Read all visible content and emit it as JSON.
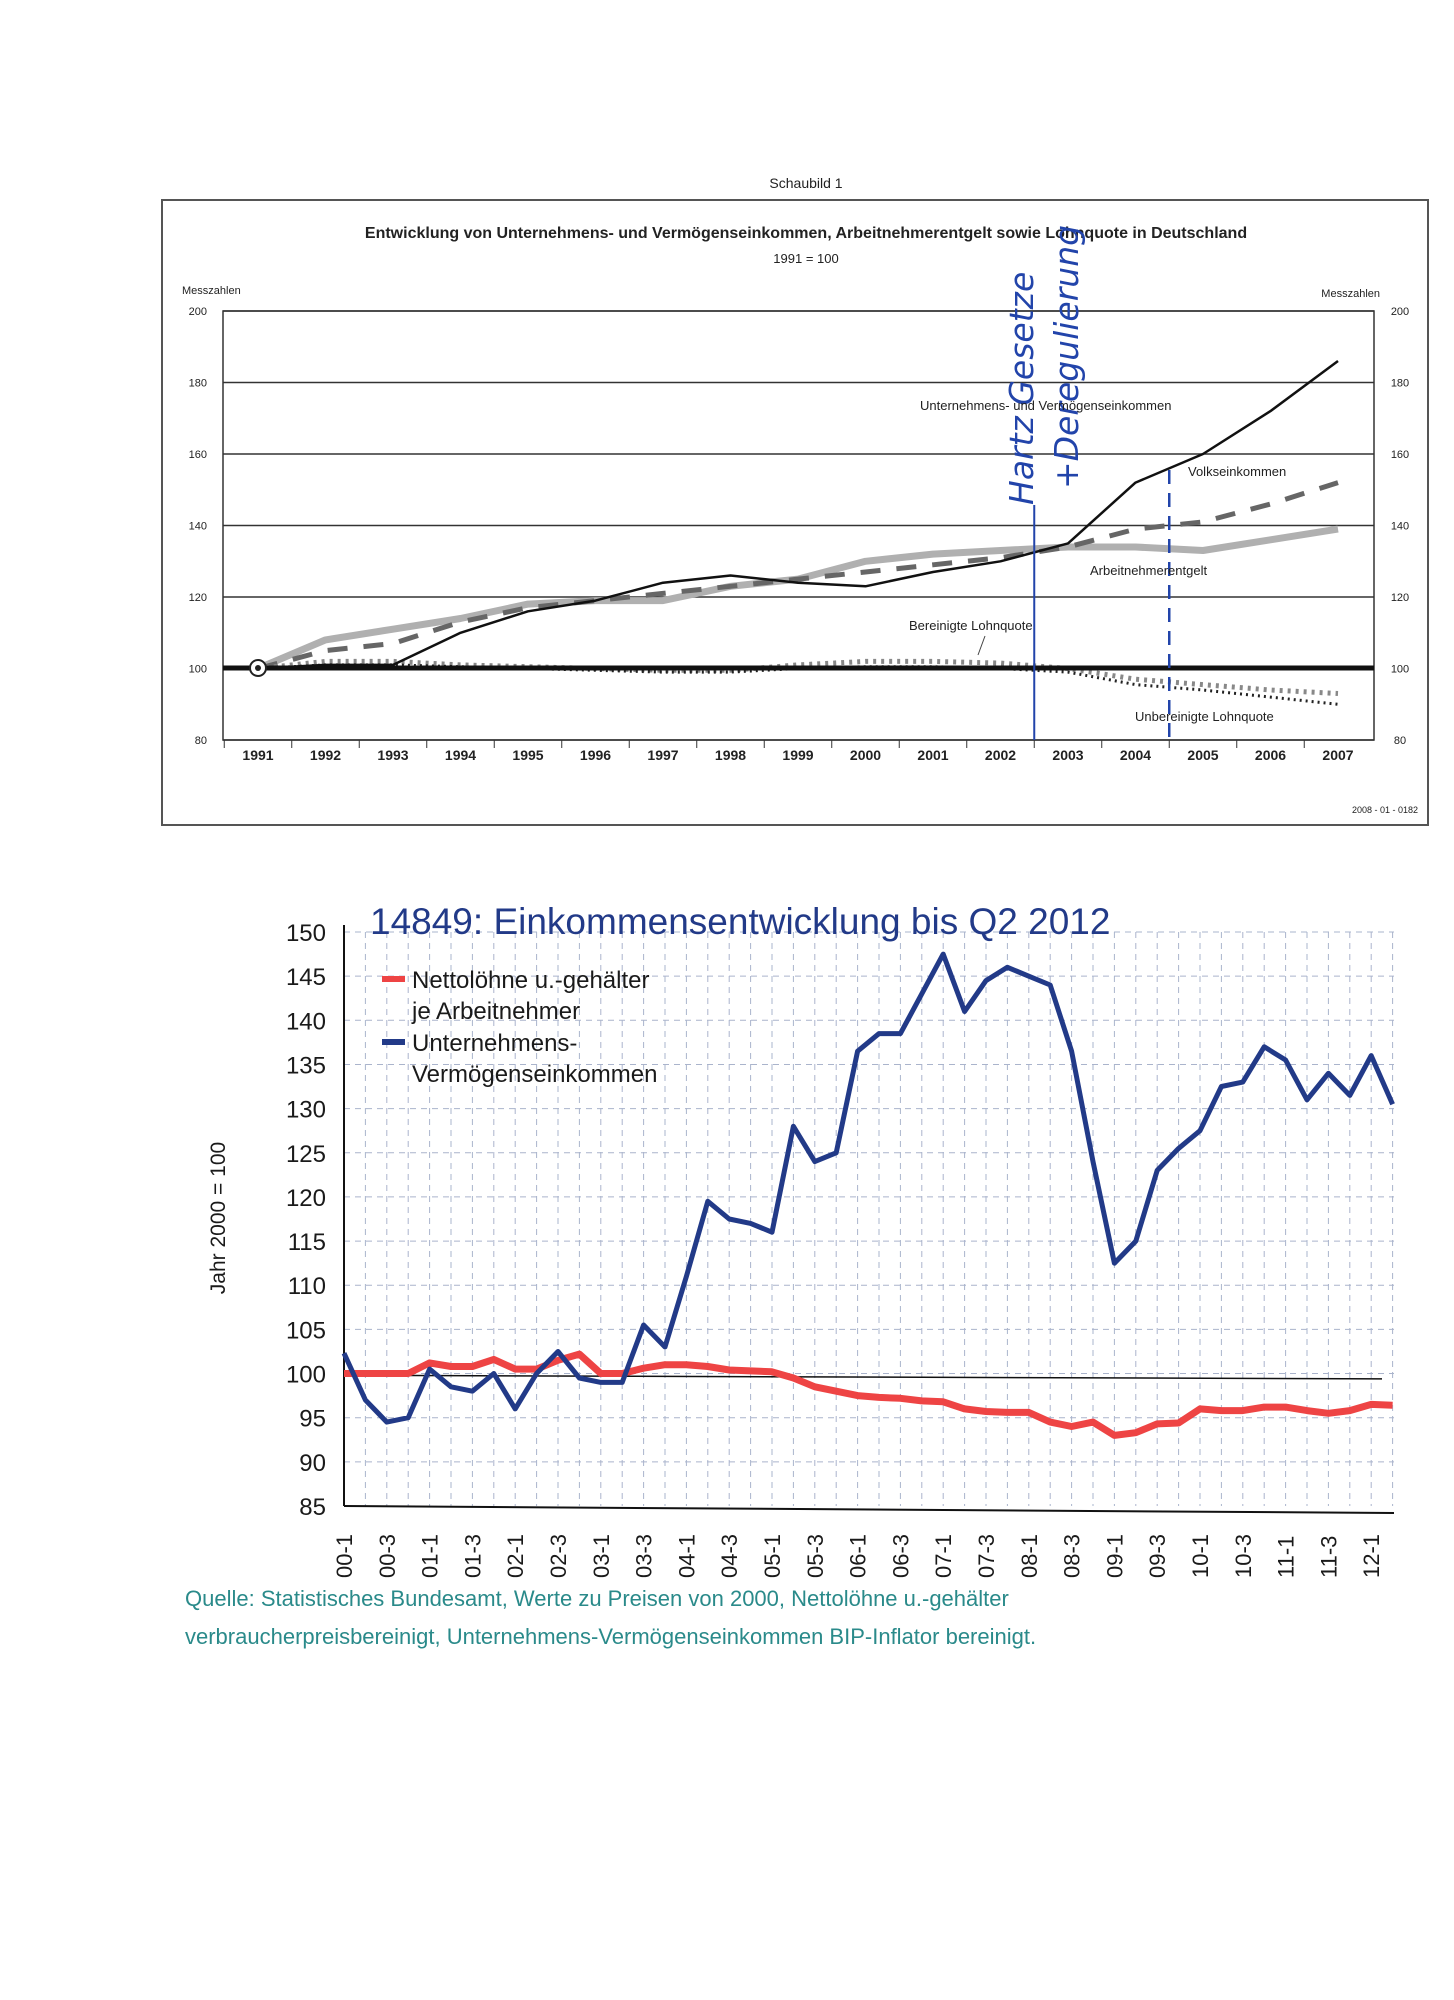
{
  "chart_data": [
    {
      "type": "line",
      "caption": "Schaubild 1",
      "title": "Entwicklung von Unternehmens- und Vermögenseinkommen, Arbeitnehmerentgelt sowie Lohnquote in Deutschland",
      "subtitle": "1991 = 100",
      "ylabel_left": "Messzahlen",
      "ylabel_right": "Messzahlen",
      "ylim": [
        80,
        200
      ],
      "yticks": [
        80,
        100,
        120,
        140,
        160,
        180,
        200
      ],
      "x": [
        "1991",
        "1992",
        "1993",
        "1994",
        "1995",
        "1996",
        "1997",
        "1998",
        "1999",
        "2000",
        "2001",
        "2002",
        "2003",
        "2004",
        "2005",
        "2006",
        "2007"
      ],
      "series": [
        {
          "name": "Unternehmens- und Vermögenseinkommen",
          "style": "solid-black",
          "values": [
            100,
            101,
            101,
            110,
            116,
            119,
            124,
            126,
            124,
            123,
            127,
            130,
            135,
            152,
            160,
            172,
            186
          ]
        },
        {
          "name": "Volkseinkommen",
          "style": "dashed-gray",
          "values": [
            100,
            105,
            107,
            113,
            117,
            119,
            121,
            123,
            125,
            127,
            129,
            131,
            134,
            139,
            141,
            146,
            152
          ]
        },
        {
          "name": "Arbeitnehmerentgelt",
          "style": "thick-lightgray",
          "values": [
            100,
            108,
            111,
            114,
            118,
            119,
            119,
            123,
            125,
            130,
            132,
            133,
            134,
            134,
            133,
            136,
            139
          ]
        },
        {
          "name": "Bereinigte Lohnquote",
          "style": "dashed-dotted-gray",
          "values": [
            100,
            102,
            102,
            101,
            100.5,
            100,
            99.5,
            99.5,
            101,
            102,
            102,
            101.5,
            100,
            97,
            95.5,
            94,
            93
          ]
        },
        {
          "name": "Unbereinigte Lohnquote",
          "style": "dotted-black",
          "values": [
            100,
            101,
            101,
            100.5,
            100,
            99.5,
            99,
            99,
            100,
            100.5,
            100.5,
            100,
            99,
            95.5,
            94,
            92,
            90
          ]
        }
      ],
      "annotations": {
        "line1": "Hartz Gesetze",
        "line2": "+Deregulierung",
        "marker_solid_at": 2002.5,
        "marker_dashed_at": 2004.5,
        "color": "#2244aa"
      },
      "footnote": "2008 - 01 - 0182"
    },
    {
      "type": "line",
      "title": "14849: Einkommensentwicklung bis Q2 2012",
      "ylabel": "Jahr 2000 = 100",
      "ylim": [
        85,
        150
      ],
      "yticks": [
        85,
        90,
        95,
        100,
        105,
        110,
        115,
        120,
        125,
        130,
        135,
        140,
        145,
        150
      ],
      "x_tick_labels": [
        "00-1",
        "00-3",
        "01-1",
        "01-3",
        "02-1",
        "02-3",
        "03-1",
        "03-3",
        "04-1",
        "04-3",
        "05-1",
        "05-3",
        "06-1",
        "06-3",
        "07-1",
        "07-3",
        "08-1",
        "08-3",
        "09-1",
        "09-3",
        "10-1",
        "10-3",
        "11-1",
        "11-3",
        "12-1"
      ],
      "x_quarters_count": 50,
      "series": [
        {
          "name_line1": "Nettolöhne u.-gehälter",
          "name_line2": "je Arbeitnehmer",
          "color": "#ee4444",
          "values": [
            100,
            100,
            100,
            100,
            101.2,
            100.8,
            100.8,
            101.6,
            100.5,
            100.5,
            101.5,
            102.2,
            100,
            100,
            100.6,
            101,
            101,
            100.8,
            100.4,
            100.3,
            100.2,
            99.5,
            98.5,
            98,
            97.5,
            97.3,
            97.2,
            96.9,
            96.8,
            96,
            95.7,
            95.6,
            95.6,
            94.5,
            94,
            94.5,
            93,
            93.3,
            94.3,
            94.4,
            96,
            95.8,
            95.8,
            96.2,
            96.2,
            95.8,
            95.5,
            95.8,
            96.5,
            96.4
          ]
        },
        {
          "name_line1": "Unternehmens-",
          "name_line2": "Vermögenseinkommen",
          "color": "#223a88",
          "values": [
            102.3,
            97,
            94.5,
            95,
            100.5,
            98.5,
            98,
            100,
            96,
            100,
            102.5,
            99.5,
            99,
            99,
            105.5,
            103,
            111,
            119.5,
            117.5,
            117,
            116,
            128,
            124,
            125,
            136.5,
            138.5,
            138.5,
            143,
            147.5,
            141,
            144.5,
            146,
            145,
            144,
            136.5,
            124,
            112.5,
            115,
            123,
            125.5,
            127.5,
            132.5,
            133,
            137,
            135.5,
            131,
            134,
            131.5,
            136,
            130.5
          ]
        }
      ],
      "reference_line": 99.4,
      "source_line1": "Quelle: Statistisches Bundesamt, Werte zu Preisen von 2000,  Nettolöhne u.-gehälter",
      "source_line2": "verbraucherpreisbereinigt,  Unternehmens-Vermögenseinkommen BIP-Inflator bereinigt.",
      "source_color": "#2a8a8a"
    }
  ]
}
